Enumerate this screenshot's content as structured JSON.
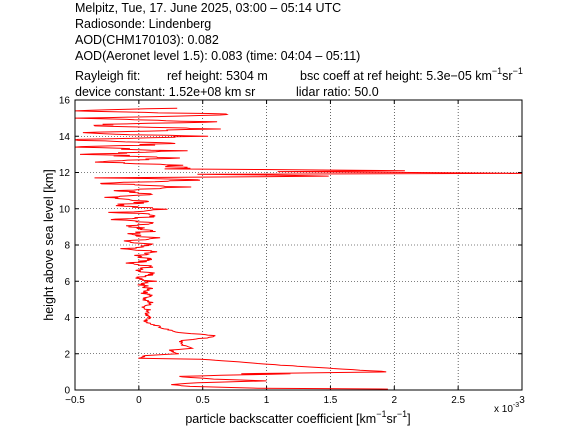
{
  "header": {
    "line1": "Melpitz, Tue, 17. June 2025, 03:00 – 05:14 UTC",
    "line2": "Radiosonde: Lindenberg",
    "line3": "AOD(CHM170103): 0.082",
    "line4": "AOD(Aeronet level 1.5): 0.083   (time: 04:04 – 05:11)",
    "rayleigh_fit": "Rayleigh fit:",
    "ref_height": "ref height: 5304 m",
    "bsc_coeff_prefix": "bsc coeff at ref height: 5.3e−05 km",
    "bsc_coeff_exp1": "−1",
    "bsc_coeff_mid": "sr",
    "bsc_coeff_exp2": "−1",
    "device_constant": "device constant: 1.52e+08 km sr",
    "lidar_ratio": "lidar ratio: 50.0"
  },
  "chart_data": {
    "type": "line",
    "xlabel_prefix": "particle backscatter coefficient [km",
    "xlabel_exp1": "−1",
    "xlabel_mid": "sr",
    "xlabel_exp2": "−1",
    "xlabel_suffix": "]",
    "ylabel": "height above sea level [km]",
    "x_multiplier_base": "x 10",
    "x_multiplier_exp": "-3",
    "xlim": [
      -0.5,
      3.0
    ],
    "ylim": [
      0,
      16
    ],
    "xticks": [
      -0.5,
      0,
      0.5,
      1,
      1.5,
      2,
      2.5,
      3
    ],
    "xtick_labels": [
      "−0.5",
      "0",
      "0.5",
      "1",
      "1.5",
      "2",
      "2.5",
      "3"
    ],
    "yticks": [
      0,
      2,
      4,
      6,
      8,
      10,
      12,
      14,
      16
    ],
    "ytick_labels": [
      "0",
      "2",
      "4",
      "6",
      "8",
      "10",
      "12",
      "14",
      "16"
    ],
    "grid": true,
    "line_color": "#ff0000",
    "series": [
      {
        "profile": [
          [
            0.05,
            1.9
          ],
          [
            0.0,
            1.75
          ],
          [
            0.5,
            1.7
          ],
          [
            1.05,
            1.4
          ],
          [
            1.95,
            1.0
          ],
          [
            1.2,
            0.9
          ],
          [
            0.8,
            0.9
          ],
          [
            0.3,
            0.75
          ],
          [
            0.6,
            0.6
          ],
          [
            1.0,
            0.5
          ],
          [
            0.45,
            0.4
          ],
          [
            0.25,
            0.3
          ],
          [
            0.4,
            0.2
          ],
          [
            0.95,
            0.1
          ],
          [
            1.95,
            0.05
          ],
          [
            0.3,
            2.0
          ],
          [
            0.25,
            2.2
          ],
          [
            0.4,
            2.3
          ],
          [
            0.35,
            2.5
          ],
          [
            0.32,
            2.7
          ],
          [
            0.55,
            2.9
          ],
          [
            0.6,
            3.0
          ],
          [
            0.28,
            3.2
          ],
          [
            0.2,
            3.4
          ],
          [
            0.12,
            3.6
          ],
          [
            0.05,
            3.8
          ],
          [
            0.1,
            4.0
          ],
          [
            0.05,
            4.2
          ],
          [
            0.08,
            4.4
          ],
          [
            0.04,
            4.6
          ],
          [
            0.1,
            4.8
          ],
          [
            0.02,
            5.0
          ],
          [
            0.08,
            5.2
          ],
          [
            0.03,
            5.4
          ],
          [
            0.08,
            5.6
          ],
          [
            0.02,
            5.8
          ],
          [
            0.1,
            6.0
          ],
          [
            -0.02,
            6.2
          ],
          [
            0.12,
            6.4
          ],
          [
            0.0,
            6.6
          ],
          [
            0.1,
            6.8
          ],
          [
            -0.05,
            7.0
          ],
          [
            0.12,
            7.2
          ],
          [
            -0.05,
            7.4
          ],
          [
            0.15,
            7.6
          ],
          [
            -0.1,
            7.8
          ],
          [
            0.1,
            8.0
          ],
          [
            -0.1,
            8.2
          ],
          [
            0.15,
            8.4
          ],
          [
            -0.12,
            8.6
          ],
          [
            0.15,
            8.8
          ],
          [
            -0.1,
            9.0
          ],
          [
            0.15,
            9.2
          ],
          [
            -0.15,
            9.4
          ],
          [
            0.2,
            9.6
          ],
          [
            -0.15,
            9.8
          ],
          [
            0.2,
            10.0
          ],
          [
            -0.2,
            10.2
          ],
          [
            0.15,
            10.4
          ],
          [
            -0.25,
            10.6
          ],
          [
            0.18,
            10.8
          ],
          [
            -0.2,
            11.0
          ],
          [
            0.35,
            11.2
          ],
          [
            -0.3,
            11.4
          ],
          [
            0.55,
            11.6
          ],
          [
            -0.25,
            11.7
          ],
          [
            1.6,
            11.8
          ],
          [
            0.5,
            11.9
          ],
          [
            3.0,
            11.95
          ],
          [
            1.2,
            12.05
          ],
          [
            2.1,
            12.1
          ],
          [
            0.3,
            12.2
          ],
          [
            0.25,
            12.4
          ],
          [
            -0.35,
            12.6
          ],
          [
            0.35,
            12.8
          ],
          [
            -0.4,
            13.0
          ],
          [
            0.3,
            13.2
          ],
          [
            -0.45,
            13.4
          ],
          [
            0.35,
            13.6
          ],
          [
            -0.5,
            13.8
          ],
          [
            0.45,
            14.0
          ],
          [
            -0.5,
            14.2
          ],
          [
            0.6,
            14.4
          ],
          [
            -0.45,
            14.6
          ],
          [
            0.55,
            14.8
          ],
          [
            -0.5,
            15.0
          ],
          [
            0.8,
            15.2
          ],
          [
            -0.5,
            15.4
          ],
          [
            0.3,
            15.55
          ]
        ]
      }
    ]
  }
}
